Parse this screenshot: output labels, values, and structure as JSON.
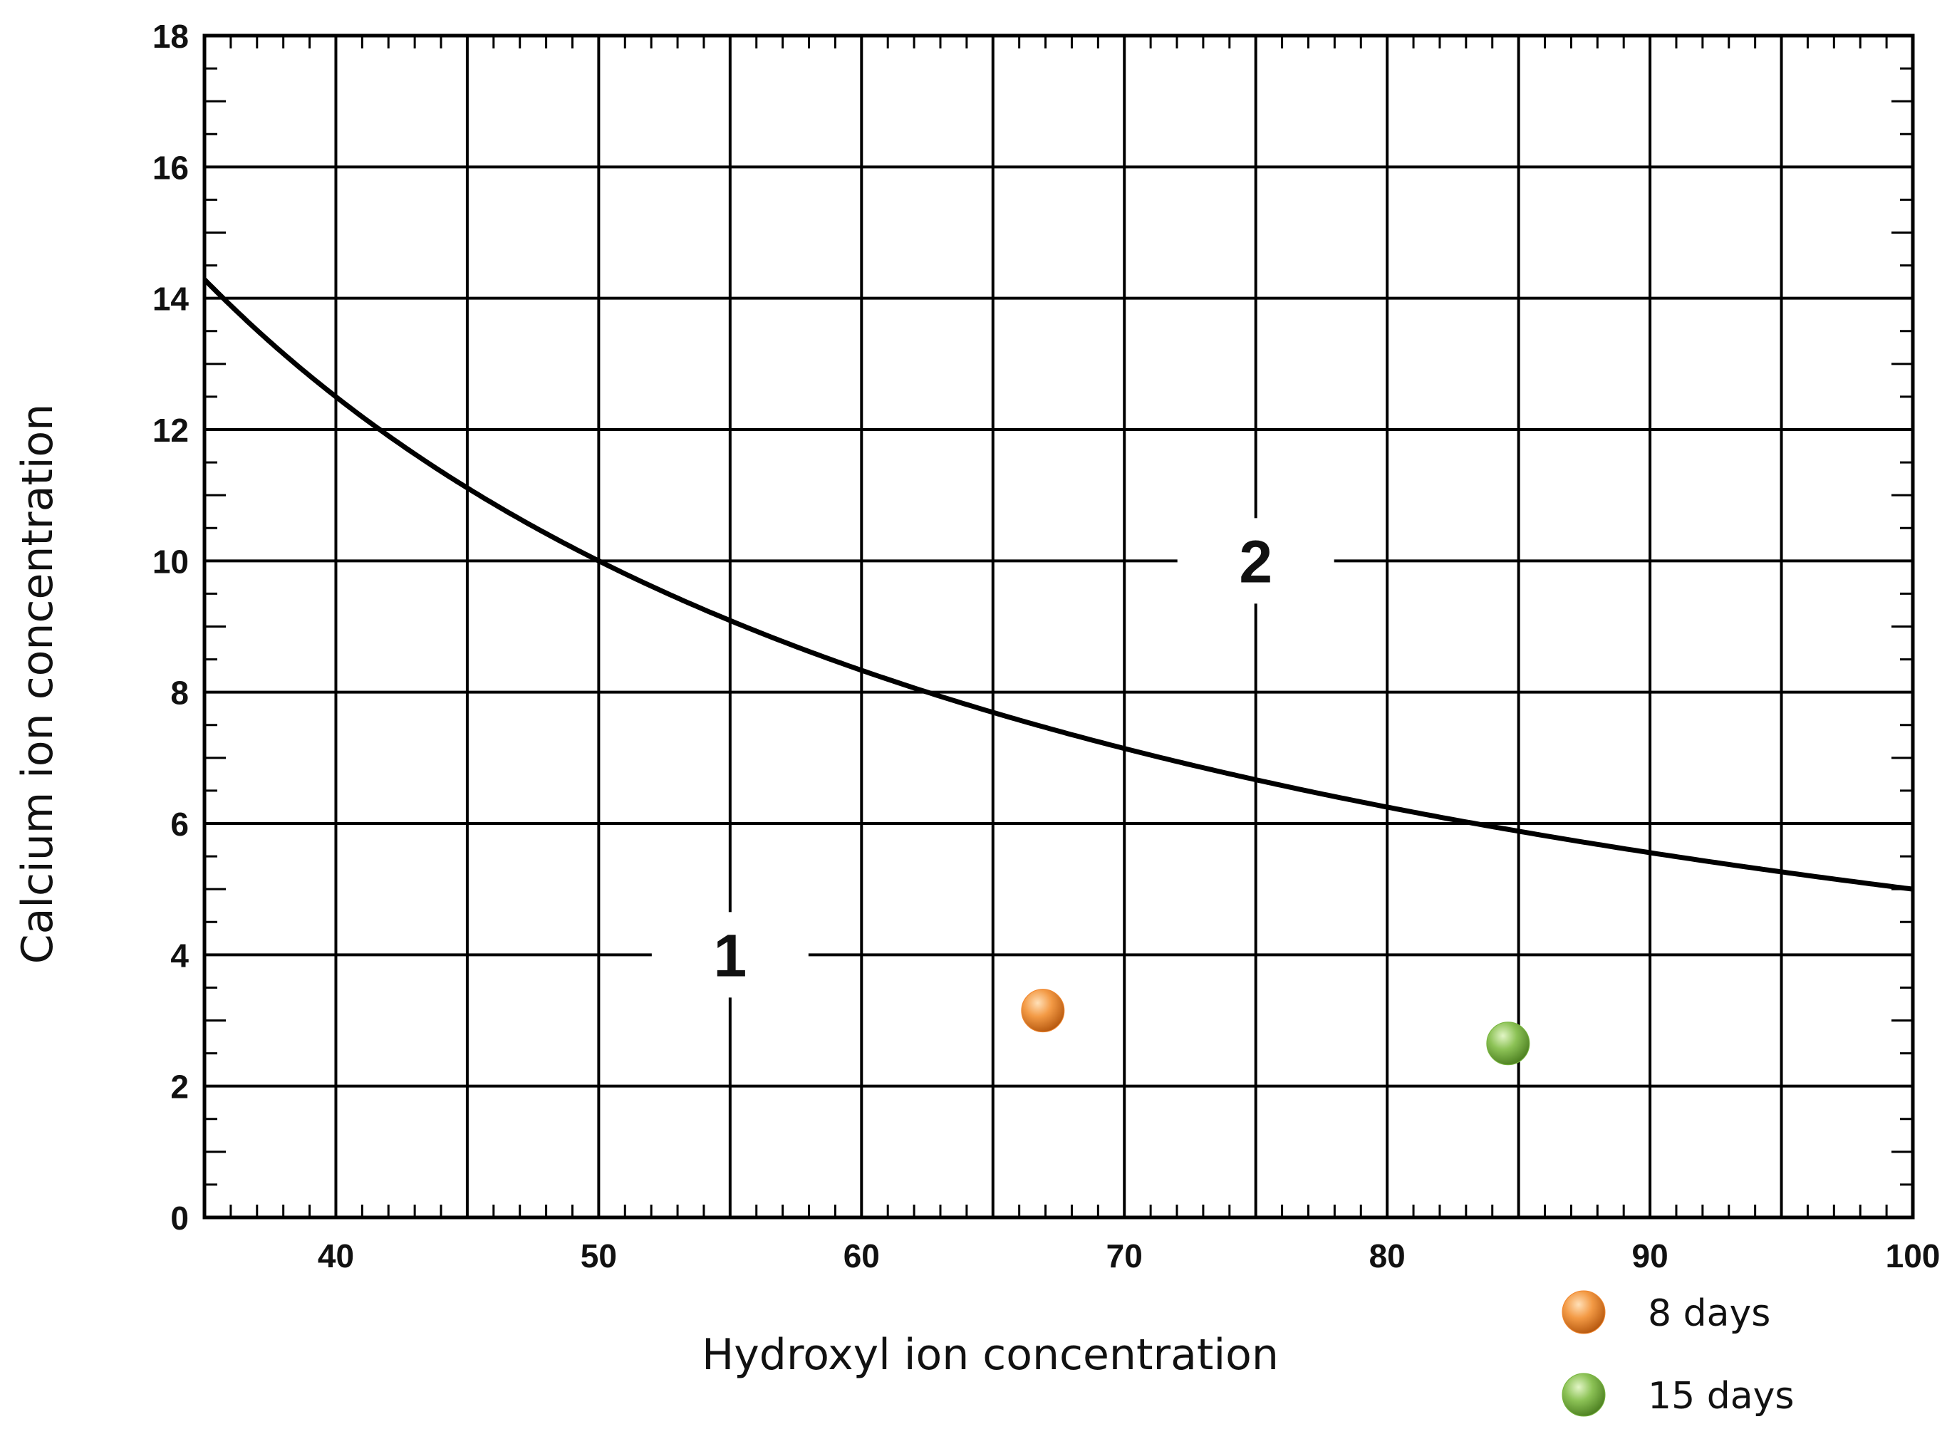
{
  "chart_data": {
    "type": "scatter",
    "title": "",
    "xlabel": "Hydroxyl ion concentration",
    "ylabel": "Calcium ion concentration",
    "xlim": [
      35,
      100
    ],
    "ylim": [
      0,
      18
    ],
    "x_ticks": [
      40,
      50,
      60,
      70,
      80,
      90,
      100
    ],
    "y_ticks": [
      0,
      2,
      4,
      6,
      8,
      10,
      12,
      14,
      16,
      18
    ],
    "x_tick_labels": [
      "40",
      "50",
      "60",
      "70",
      "80",
      "90",
      "100"
    ],
    "y_tick_labels": [
      "0",
      "2",
      "4",
      "6",
      "8",
      "10",
      "12",
      "14",
      "16",
      "18"
    ],
    "grid": true,
    "curve": {
      "relation": "Ca x OH = 500",
      "constant": 500,
      "color": "#000000"
    },
    "region_labels": [
      {
        "text": "1",
        "x": 55,
        "y": 4
      },
      {
        "text": "2",
        "x": 75,
        "y": 10
      }
    ],
    "series": [
      {
        "name": "8 days",
        "color": "#f0852c",
        "points": [
          {
            "x": 66.9,
            "y": 3.15
          }
        ]
      },
      {
        "name": "15 days",
        "color": "#76b43c",
        "points": [
          {
            "x": 84.6,
            "y": 2.65
          }
        ]
      }
    ],
    "legend": {
      "position": "bottom-right",
      "entries": [
        "8 days",
        "15 days"
      ]
    }
  }
}
